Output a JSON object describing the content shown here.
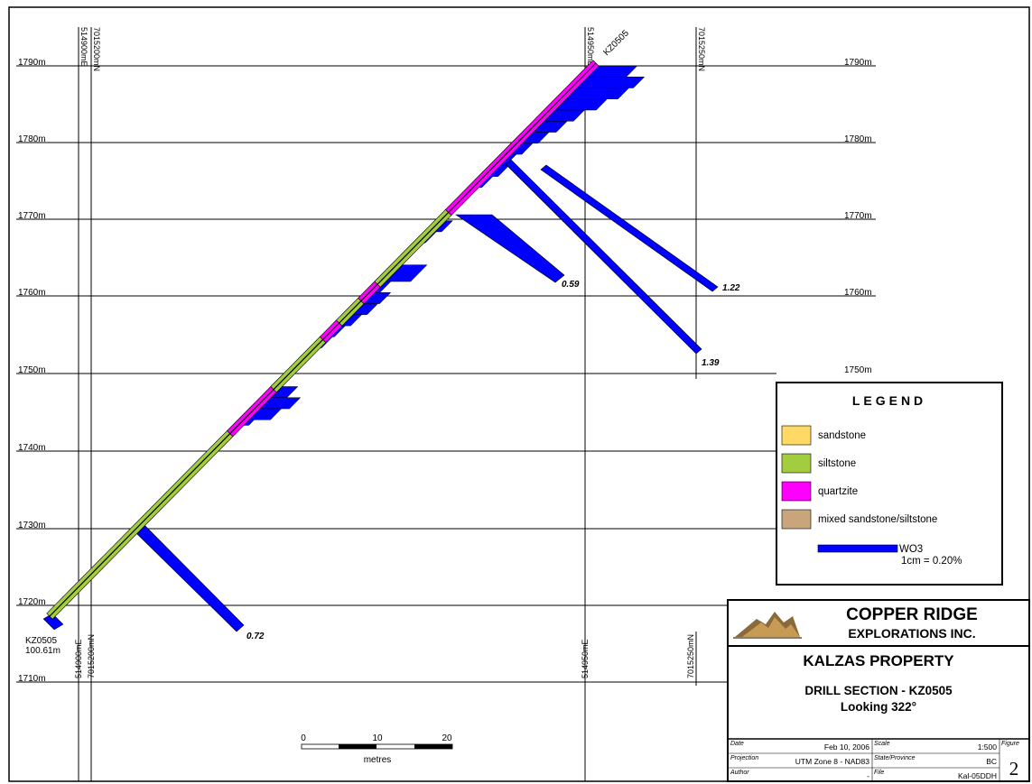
{
  "elevation_labels": [
    "1790m",
    "1780m",
    "1770m",
    "1760m",
    "1750m",
    "1740m",
    "1730m",
    "1720m",
    "1710m"
  ],
  "elevations": [
    1790,
    1780,
    1770,
    1760,
    1750,
    1740,
    1730,
    1720,
    1710
  ],
  "easting_labels": {
    "e1_top": "514900mE",
    "n1_top": "7015200mN",
    "e2_top": "514950mE",
    "n2_top": "7015250mN",
    "e1_bottom": "514900mE",
    "n1_bottom": "7015200mN",
    "e2_bottom": "514950mE",
    "n2_bottom": "7015250mN"
  },
  "hole": {
    "collar_label": "KZ0505",
    "end_label": "KZ0505",
    "end_depth": "100.61m"
  },
  "intercepts": {
    "v1": "1.22",
    "v2": "0.59",
    "v3": "1.39",
    "v4": "0.72"
  },
  "legend": {
    "title": "LEGEND",
    "items": [
      {
        "label": "sandstone",
        "color": "#ffd966"
      },
      {
        "label": "siltstone",
        "color": "#a3cc3f"
      },
      {
        "label": "quartzite",
        "color": "#ff00ff"
      },
      {
        "label": "mixed sandstone/siltstone",
        "color": "#c9a57b"
      }
    ],
    "wo3_label": "WO3",
    "wo3_scale": "1cm = 0.20%",
    "wo3_color": "#0000ff"
  },
  "scale_bar": {
    "ticks": [
      "0",
      "10",
      "20"
    ],
    "unit": "metres"
  },
  "title_block": {
    "company_line1": "COPPER RIDGE",
    "company_line2": "EXPLORATIONS INC.",
    "property": "KALZAS PROPERTY",
    "section": "DRILL SECTION - KZ0505",
    "looking": "Looking 322°",
    "date_label": "Date",
    "date_value": "Feb 10, 2006",
    "scale_label": "Scale",
    "scale_value": "1:500",
    "figure_label": "Figure",
    "figure_value": "2",
    "projection_label": "Projection",
    "projection_value": "UTM Zone 8 - NAD83",
    "state_label": "State/Province",
    "state_value": "BC",
    "author_label": "Author",
    "author_value": "-",
    "file_label": "File",
    "file_value": "Kal-05DDH"
  }
}
